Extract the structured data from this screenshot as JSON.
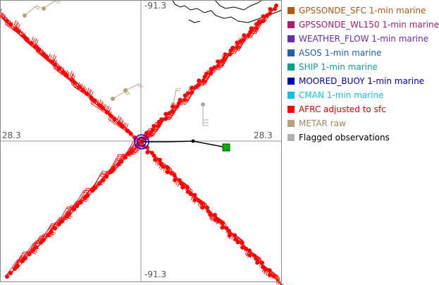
{
  "map": {
    "center_lat_label": "28.3",
    "center_lon_label": "-91.3",
    "colors": {
      "axis": "#9a9a9a",
      "coast": "#000000",
      "afrc": "#ff0000",
      "metar": "#b8a078",
      "flagged": "#aaaaaa",
      "center_ring": "#0000ff",
      "track": "#000000",
      "track_end": "#00b000"
    },
    "icons": {
      "center_marker": "target-circle-icon",
      "track_end_marker": "green-square-icon"
    }
  },
  "legend": {
    "items": [
      {
        "label": "GPSSONDE_SFC 1-min marine",
        "color": "#b05a14",
        "text_color": "#b05a14"
      },
      {
        "label": "GPSSONDE_WL150 1-min marine",
        "color": "#b01a70",
        "text_color": "#b01a70"
      },
      {
        "label": "WEATHER_FLOW 1-min marine",
        "color": "#6a2ab0",
        "text_color": "#6a2ab0"
      },
      {
        "label": "ASOS 1-min marine",
        "color": "#2060b0",
        "text_color": "#2060b0"
      },
      {
        "label": "SHIP 1-min marine",
        "color": "#10a090",
        "text_color": "#10a090"
      },
      {
        "label": "MOORED_BUOY 1-min marine",
        "color": "#0000b0",
        "text_color": "#0000b0"
      },
      {
        "label": "CMAN 1-min marine",
        "color": "#10c0e8",
        "text_color": "#10c0e8"
      },
      {
        "label": "AFRC adjusted to sfc",
        "color": "#ff0000",
        "text_color": "#e00000"
      },
      {
        "label": "METAR raw",
        "color": "#b8a078",
        "text_color": "#a08860"
      },
      {
        "label": "Flagged observations",
        "color": "#b0b0b0",
        "text_color": "#000000"
      }
    ]
  }
}
